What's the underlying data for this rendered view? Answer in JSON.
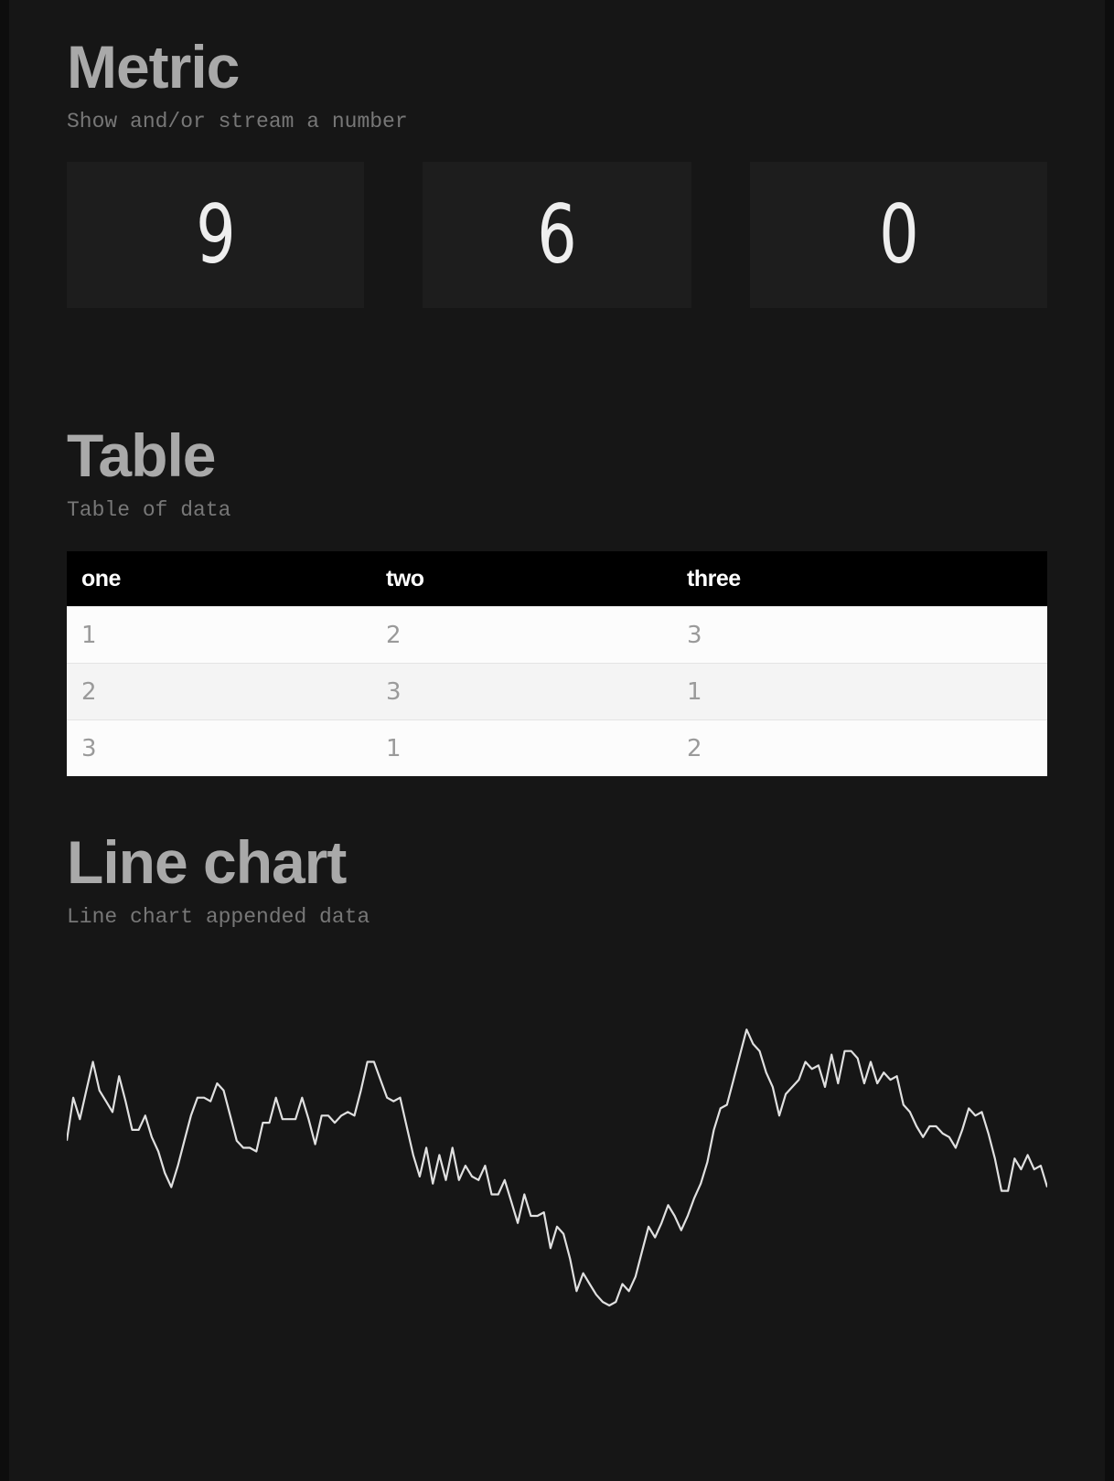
{
  "metric_section": {
    "title": "Metric",
    "subtitle": "Show and/or stream a number",
    "values": [
      "9",
      "6",
      "0"
    ]
  },
  "table_section": {
    "title": "Table",
    "subtitle": "Table of data",
    "headers": [
      "one",
      "two",
      "three"
    ],
    "rows": [
      [
        "1",
        "2",
        "3"
      ],
      [
        "2",
        "3",
        "1"
      ],
      [
        "3",
        "1",
        "2"
      ]
    ]
  },
  "chart_section": {
    "title": "Line chart",
    "subtitle": "Line chart appended data"
  },
  "chart_data": {
    "type": "line",
    "title": "",
    "xlabel": "",
    "ylabel": "",
    "grid": false,
    "axes_visible": false,
    "ylim": [
      -0.4,
      1.08
    ],
    "line_color": "#e0e0e0",
    "values": [
      0.55,
      0.67,
      0.61,
      0.69,
      0.77,
      0.69,
      0.66,
      0.63,
      0.73,
      0.66,
      0.58,
      0.58,
      0.62,
      0.56,
      0.52,
      0.46,
      0.42,
      0.48,
      0.55,
      0.62,
      0.67,
      0.67,
      0.66,
      0.71,
      0.69,
      0.62,
      0.55,
      0.53,
      0.53,
      0.52,
      0.6,
      0.6,
      0.67,
      0.61,
      0.61,
      0.61,
      0.67,
      0.61,
      0.54,
      0.62,
      0.62,
      0.6,
      0.62,
      0.63,
      0.62,
      0.69,
      0.77,
      0.77,
      0.72,
      0.67,
      0.66,
      0.67,
      0.59,
      0.51,
      0.45,
      0.53,
      0.43,
      0.51,
      0.44,
      0.53,
      0.44,
      0.48,
      0.45,
      0.44,
      0.48,
      0.4,
      0.4,
      0.44,
      0.38,
      0.32,
      0.4,
      0.34,
      0.34,
      0.35,
      0.25,
      0.31,
      0.29,
      0.22,
      0.13,
      0.18,
      0.15,
      0.12,
      0.1,
      0.09,
      0.1,
      0.15,
      0.13,
      0.17,
      0.24,
      0.31,
      0.28,
      0.32,
      0.37,
      0.34,
      0.3,
      0.34,
      0.39,
      0.43,
      0.49,
      0.58,
      0.64,
      0.65,
      0.72,
      0.79,
      0.86,
      0.82,
      0.8,
      0.74,
      0.7,
      0.62,
      0.68,
      0.7,
      0.72,
      0.77,
      0.75,
      0.76,
      0.7,
      0.79,
      0.71,
      0.8,
      0.8,
      0.78,
      0.71,
      0.77,
      0.71,
      0.74,
      0.72,
      0.73,
      0.65,
      0.63,
      0.59,
      0.56,
      0.59,
      0.59,
      0.57,
      0.56,
      0.53,
      0.58,
      0.64,
      0.62,
      0.63,
      0.57,
      0.5,
      0.41,
      0.41,
      0.5,
      0.47,
      0.51,
      0.47,
      0.48,
      0.42
    ]
  }
}
